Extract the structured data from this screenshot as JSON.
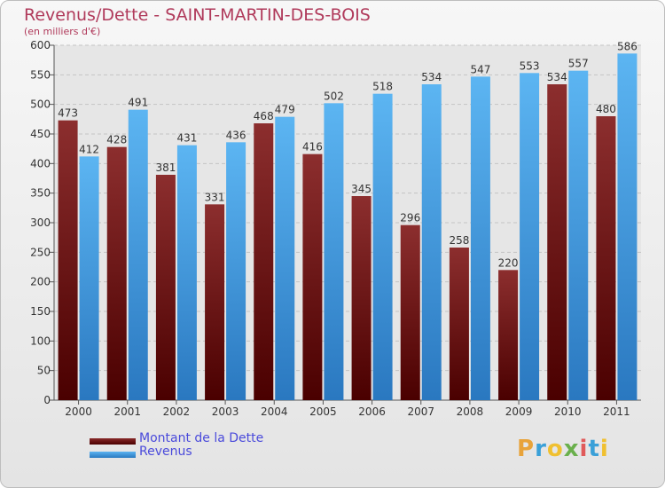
{
  "title": "Revenus/Dette - SAINT-MARTIN-DES-BOIS",
  "subtitle": "(en milliers d'€)",
  "logo": "Proxiti",
  "colors": {
    "dette": "#7a1a1a",
    "revenus": "#4aa3e6",
    "title": "#b03a5b",
    "legend_text": "#4a4adb"
  },
  "chart_data": {
    "type": "bar",
    "categories": [
      "2000",
      "2001",
      "2002",
      "2003",
      "2004",
      "2005",
      "2006",
      "2007",
      "2008",
      "2009",
      "2010",
      "2011"
    ],
    "series": [
      {
        "name": "Montant de la Dette",
        "values": [
          473,
          428,
          381,
          331,
          468,
          416,
          345,
          296,
          258,
          220,
          534,
          480
        ]
      },
      {
        "name": "Revenus",
        "values": [
          412,
          491,
          431,
          436,
          479,
          502,
          518,
          534,
          547,
          553,
          557,
          586
        ]
      }
    ],
    "ylim": [
      0,
      600
    ],
    "yticks": [
      0,
      50,
      100,
      150,
      200,
      250,
      300,
      350,
      400,
      450,
      500,
      550,
      600
    ],
    "grid": true,
    "legend_position": "bottom-left"
  }
}
